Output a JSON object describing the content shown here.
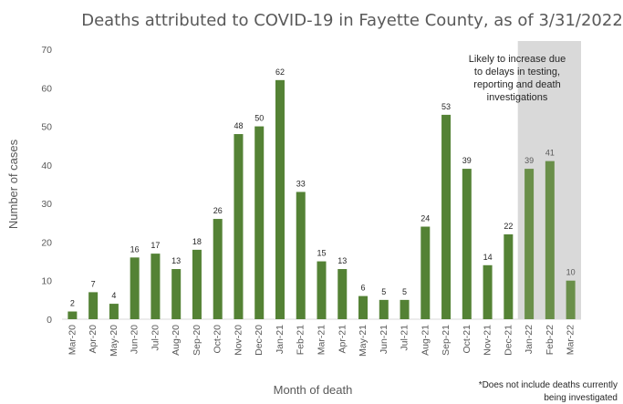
{
  "chart_data": {
    "type": "bar",
    "title": "Deaths attributed to COVID-19 in Fayette County, as of 3/31/2022",
    "xlabel": "Month of death",
    "ylabel": "Number of cases",
    "ylim": [
      0,
      70
    ],
    "yticks": [
      0,
      10,
      20,
      30,
      40,
      50,
      60,
      70
    ],
    "grid": false,
    "categories": [
      "Mar-20",
      "Apr-20",
      "May-20",
      "Jun-20",
      "Jul-20",
      "Aug-20",
      "Sep-20",
      "Oct-20",
      "Nov-20",
      "Dec-20",
      "Jan-21",
      "Feb-21",
      "Mar-21",
      "Apr-21",
      "May-21",
      "Jun-21",
      "Jul-21",
      "Aug-21",
      "Sep-21",
      "Oct-21",
      "Nov-21",
      "Dec-21",
      "Jan-22",
      "Feb-22",
      "Mar-22"
    ],
    "values": [
      2,
      7,
      4,
      16,
      17,
      13,
      18,
      26,
      48,
      50,
      62,
      33,
      15,
      13,
      6,
      5,
      5,
      24,
      53,
      39,
      14,
      22,
      39,
      41,
      10
    ],
    "bar_color": "#548235",
    "shaded_bar_color": "#6a8f4a",
    "shaded_region": {
      "from_category": "Jan-22",
      "to_category": "Mar-22",
      "color": "#d9d9d9",
      "note_lines": [
        "Likely to increase due",
        "to delays in testing,",
        "reporting and death",
        "investigations"
      ]
    },
    "footnote_lines": [
      "*Does not include deaths currently",
      "being investigated"
    ]
  }
}
